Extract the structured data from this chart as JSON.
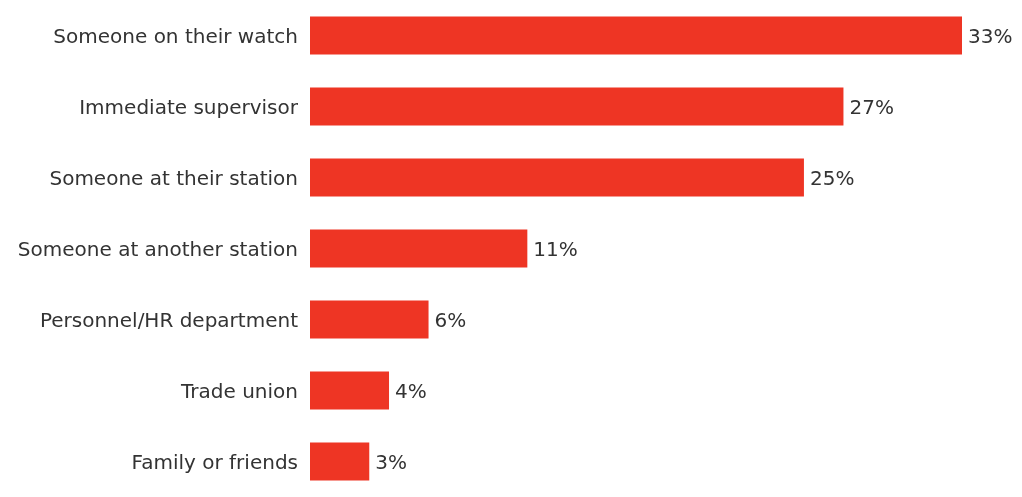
{
  "chart_data": {
    "type": "bar",
    "orientation": "horizontal",
    "categories": [
      "Someone on their watch",
      "Immediate supervisor",
      "Someone at their station",
      "Someone at another station",
      "Personnel/HR department",
      "Trade union",
      "Family or friends"
    ],
    "values": [
      33,
      27,
      25,
      11,
      6,
      4,
      3
    ],
    "value_labels": [
      "33%",
      "27%",
      "25%",
      "11%",
      "6%",
      "4%",
      "3%"
    ],
    "color": "#ee3524"
  }
}
